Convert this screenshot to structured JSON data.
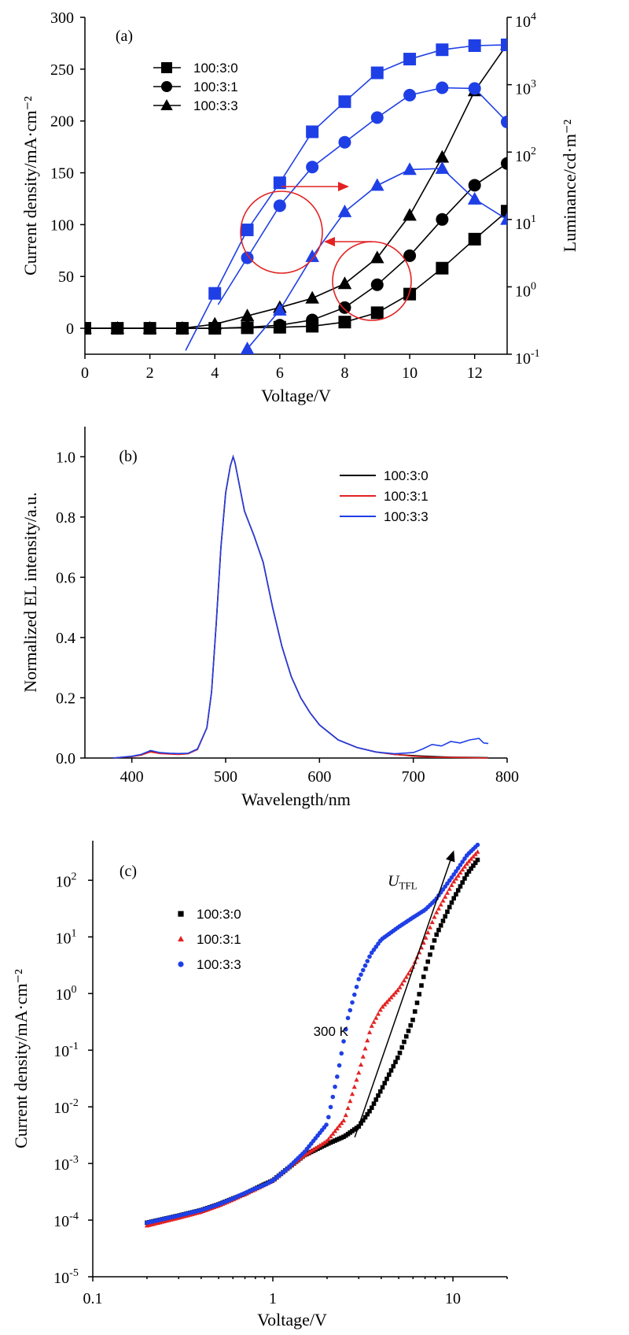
{
  "chart_data": [
    {
      "panel": "(a)",
      "type": "line",
      "xlabel": "Voltage/V",
      "ylabel": "Current density/mA·cm⁻²",
      "y2label": "Luminance/cd·m⁻²",
      "xlim": [
        0,
        13
      ],
      "ylim": [
        -25,
        300
      ],
      "y2lim": [
        0.1,
        10000
      ],
      "y2scale": "log",
      "x_ticks": [
        0,
        2,
        4,
        6,
        8,
        10,
        12
      ],
      "y_ticks": [
        0,
        50,
        100,
        150,
        200,
        250,
        300
      ],
      "y2_ticks": [
        {
          "v": 0.1,
          "t": "10",
          "e": "-1"
        },
        {
          "v": 1,
          "t": "10",
          "e": "0"
        },
        {
          "v": 10,
          "t": "10",
          "e": "1"
        },
        {
          "v": 100,
          "t": "10",
          "e": "2"
        },
        {
          "v": 1000,
          "t": "10",
          "e": "3"
        },
        {
          "v": 10000,
          "t": "10",
          "e": "4"
        }
      ],
      "legend_position": "top-left",
      "series": [
        {
          "name": "100:3:0",
          "marker": "square",
          "color": "#000000",
          "axis": "left",
          "x": [
            0,
            1,
            2,
            3,
            4,
            5,
            6,
            7,
            8,
            9,
            10,
            11,
            12,
            13
          ],
          "y": [
            0,
            0,
            0,
            0,
            0,
            0.5,
            1,
            2,
            6,
            15,
            33,
            58,
            86,
            113
          ]
        },
        {
          "name": "100:3:1",
          "marker": "circle",
          "color": "#000000",
          "axis": "left",
          "x": [
            0,
            1,
            2,
            3,
            4,
            5,
            6,
            7,
            8,
            9,
            10,
            11,
            12,
            13
          ],
          "y": [
            0,
            0,
            0,
            0,
            0,
            1,
            3,
            8,
            20,
            42,
            70,
            105,
            138,
            159
          ]
        },
        {
          "name": "100:3:3",
          "marker": "triangle",
          "color": "#000000",
          "axis": "left",
          "x": [
            0,
            1,
            2,
            3,
            4,
            5,
            6,
            7,
            8,
            9,
            10,
            11,
            12,
            13
          ],
          "y": [
            0,
            0,
            0,
            0,
            4,
            12,
            20,
            29,
            43,
            68,
            109,
            165,
            229,
            274
          ]
        },
        {
          "name": "100:3:0",
          "marker": "square",
          "color": "#1f3fe6",
          "axis": "right",
          "x": [
            4,
            5,
            6,
            7,
            8,
            9,
            10,
            11,
            12,
            13
          ],
          "y": [
            0.8,
            7,
            35,
            200,
            560,
            1500,
            2400,
            3300,
            3800,
            3900
          ]
        },
        {
          "name": "100:3:1",
          "marker": "circle",
          "color": "#1f3fe6",
          "axis": "right",
          "x": [
            5,
            6,
            7,
            8,
            9,
            10,
            11,
            12,
            13
          ],
          "y": [
            2.7,
            16,
            60,
            140,
            325,
            700,
            900,
            880,
            280
          ]
        },
        {
          "name": "100:3:3",
          "marker": "triangle",
          "color": "#1f3fe6",
          "axis": "right",
          "x": [
            5,
            6,
            7,
            8,
            9,
            10,
            11,
            12,
            13
          ],
          "y": [
            0.12,
            0.45,
            2.8,
            13,
            32,
            55,
            57,
            20,
            10
          ]
        }
      ]
    },
    {
      "panel": "(b)",
      "type": "line",
      "xlabel": "Wavelength/nm",
      "ylabel": "Normalized EL intensity/a.u.",
      "xlim": [
        350,
        800
      ],
      "ylim": [
        0,
        1.1
      ],
      "x_ticks": [
        400,
        500,
        600,
        700,
        800
      ],
      "y_ticks": [
        0.0,
        0.2,
        0.4,
        0.6,
        0.8,
        1.0
      ],
      "legend_position": "top-right",
      "series": [
        {
          "name": "100:3:0",
          "color": "#000000",
          "x": [
            380,
            400,
            410,
            420,
            430,
            440,
            450,
            460,
            470,
            480,
            485,
            490,
            495,
            500,
            505,
            508,
            510,
            515,
            520,
            525,
            530,
            540,
            550,
            560,
            570,
            580,
            590,
            600,
            620,
            640,
            660,
            680,
            700,
            720,
            740,
            760,
            780
          ],
          "y": [
            0.0,
            0.005,
            0.01,
            0.022,
            0.016,
            0.014,
            0.013,
            0.015,
            0.03,
            0.1,
            0.22,
            0.45,
            0.7,
            0.88,
            0.97,
            1.0,
            0.98,
            0.9,
            0.82,
            0.78,
            0.74,
            0.65,
            0.5,
            0.37,
            0.27,
            0.2,
            0.15,
            0.11,
            0.06,
            0.035,
            0.02,
            0.012,
            0.008,
            0.005,
            0.003,
            0.002,
            0.001
          ]
        },
        {
          "name": "100:3:1",
          "color": "#e32222",
          "x": [
            380,
            400,
            410,
            420,
            430,
            440,
            450,
            460,
            470,
            480,
            485,
            490,
            495,
            500,
            505,
            508,
            510,
            515,
            520,
            525,
            530,
            540,
            550,
            560,
            570,
            580,
            590,
            600,
            620,
            640,
            660,
            680,
            700,
            720,
            740,
            760,
            780
          ],
          "y": [
            0.0,
            0.005,
            0.01,
            0.02,
            0.015,
            0.013,
            0.012,
            0.014,
            0.028,
            0.1,
            0.22,
            0.45,
            0.7,
            0.88,
            0.97,
            1.0,
            0.98,
            0.9,
            0.82,
            0.78,
            0.74,
            0.65,
            0.5,
            0.37,
            0.27,
            0.2,
            0.15,
            0.11,
            0.06,
            0.035,
            0.02,
            0.012,
            0.006,
            0.003,
            0.002,
            0.001,
            0.0
          ]
        },
        {
          "name": "100:3:3",
          "color": "#1f3fe6",
          "x": [
            380,
            400,
            410,
            420,
            430,
            440,
            450,
            460,
            470,
            480,
            485,
            490,
            495,
            500,
            505,
            508,
            510,
            515,
            520,
            525,
            530,
            540,
            550,
            560,
            570,
            580,
            590,
            600,
            620,
            640,
            660,
            680,
            700,
            710,
            720,
            730,
            740,
            750,
            760,
            770,
            775,
            780
          ],
          "y": [
            0.0,
            0.006,
            0.012,
            0.025,
            0.018,
            0.016,
            0.015,
            0.016,
            0.03,
            0.1,
            0.22,
            0.45,
            0.7,
            0.88,
            0.97,
            1.0,
            0.98,
            0.9,
            0.82,
            0.78,
            0.74,
            0.65,
            0.5,
            0.37,
            0.27,
            0.2,
            0.15,
            0.11,
            0.06,
            0.035,
            0.02,
            0.014,
            0.018,
            0.03,
            0.045,
            0.04,
            0.055,
            0.05,
            0.06,
            0.065,
            0.05,
            0.048
          ]
        }
      ]
    },
    {
      "panel": "(c)",
      "type": "scatter",
      "xlabel": "Voltage/V",
      "ylabel": "Current density/mA·cm⁻²",
      "xscale": "log",
      "yscale": "log",
      "xlim": [
        0.1,
        20
      ],
      "ylim": [
        1e-05,
        500
      ],
      "x_ticks": [
        {
          "v": 0.1,
          "t": "0.1"
        },
        {
          "v": 1,
          "t": "1"
        },
        {
          "v": 10,
          "t": "10"
        }
      ],
      "y_ticks": [
        {
          "v": 1e-05,
          "t": "10",
          "e": "-5"
        },
        {
          "v": 0.0001,
          "t": "10",
          "e": "-4"
        },
        {
          "v": 0.001,
          "t": "10",
          "e": "-3"
        },
        {
          "v": 0.01,
          "t": "10",
          "e": "-2"
        },
        {
          "v": 0.1,
          "t": "10",
          "e": "-1"
        },
        {
          "v": 1,
          "t": "10",
          "e": "0"
        },
        {
          "v": 10,
          "t": "10",
          "e": "1"
        },
        {
          "v": 100,
          "t": "10",
          "e": "2"
        }
      ],
      "legend_position": "top-left",
      "annotations": [
        {
          "text": "300 K",
          "x": 2.1,
          "y": 0.18
        },
        {
          "text": "U",
          "sub": "TFL",
          "x": 5.8,
          "y": 150
        }
      ],
      "fit_line": {
        "x": [
          2.85,
          9.8
        ],
        "y": [
          0.0029,
          250
        ]
      },
      "series": [
        {
          "name": "100:3:0",
          "marker": "square",
          "color": "#000000",
          "x": [
            0.2,
            0.3,
            0.4,
            0.5,
            0.6,
            0.7,
            0.8,
            0.9,
            1.0,
            1.2,
            1.5,
            2.0,
            2.5,
            3.0,
            3.5,
            4.0,
            5.0,
            6.0,
            7.0,
            8.0,
            10.0,
            12.0,
            14.0
          ],
          "y": [
            9e-05,
            0.00012,
            0.00015,
            0.00019,
            0.00024,
            0.00029,
            0.00036,
            0.00043,
            0.0005,
            0.0008,
            0.0014,
            0.0022,
            0.003,
            0.0045,
            0.009,
            0.02,
            0.08,
            0.35,
            2.5,
            10,
            45,
            130,
            250
          ]
        },
        {
          "name": "100:3:1",
          "marker": "triangle",
          "color": "#e32222",
          "x": [
            0.2,
            0.3,
            0.4,
            0.5,
            0.6,
            0.7,
            0.8,
            0.9,
            1.0,
            1.2,
            1.5,
            2.0,
            2.5,
            3.0,
            3.5,
            4.0,
            5.0,
            6.0,
            7.0,
            8.0,
            10.0,
            12.0,
            14.0
          ],
          "y": [
            8e-05,
            0.00011,
            0.00014,
            0.00018,
            0.00023,
            0.00029,
            0.00035,
            0.00042,
            0.0005,
            0.0008,
            0.0014,
            0.0025,
            0.006,
            0.04,
            0.25,
            0.55,
            1.2,
            3,
            9,
            25,
            90,
            200,
            340
          ]
        },
        {
          "name": "100:3:3",
          "marker": "circle",
          "color": "#1f3fe6",
          "x": [
            0.2,
            0.3,
            0.4,
            0.5,
            0.6,
            0.7,
            0.8,
            0.9,
            1.0,
            1.2,
            1.5,
            2.0,
            2.3,
            2.6,
            3.0,
            3.5,
            4.0,
            5.0,
            6.0,
            7.0,
            8.0,
            10.0,
            12.0,
            14.0
          ],
          "y": [
            9e-05,
            0.00012,
            0.00015,
            0.00019,
            0.00024,
            0.0003,
            0.00036,
            0.00042,
            0.0005,
            0.0008,
            0.0016,
            0.005,
            0.04,
            0.35,
            1.8,
            5,
            9,
            15,
            22,
            30,
            45,
            120,
            280,
            450
          ]
        }
      ]
    }
  ]
}
